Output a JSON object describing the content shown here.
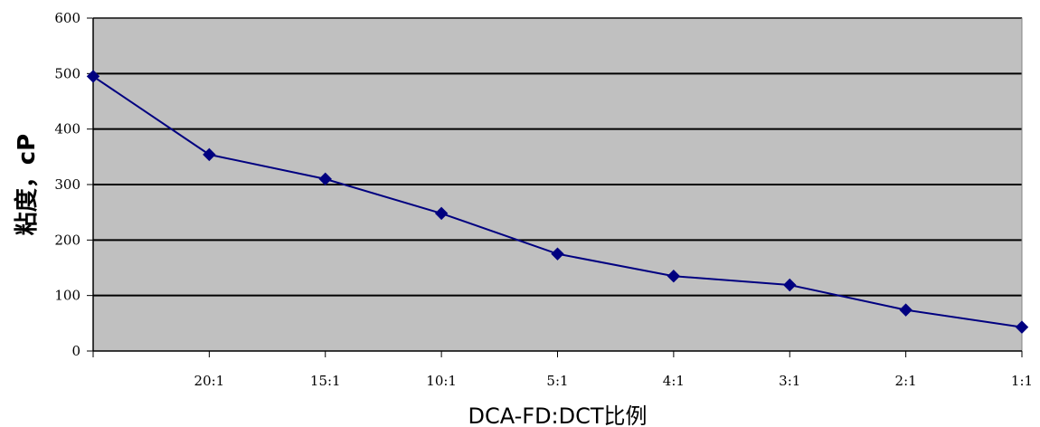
{
  "chart_data": {
    "type": "line",
    "title": "",
    "xlabel": "DCA-FD:DCT比例",
    "ylabel": "粘度，cP",
    "categories": [
      "",
      "20:1",
      "15:1",
      "10:1",
      "5:1",
      "4:1",
      "3:1",
      "2:1",
      "1:1"
    ],
    "series": [
      {
        "values": [
          495,
          354,
          310,
          248,
          175,
          135,
          119,
          74,
          43
        ]
      }
    ],
    "ylim": [
      0,
      600
    ],
    "yticks": [
      0,
      100,
      200,
      300,
      400,
      500,
      600
    ],
    "grid": true,
    "colors": {
      "plot_background": "#c0c0c0",
      "line": "#000080",
      "marker": "#000080",
      "gridline": "#000000"
    }
  }
}
